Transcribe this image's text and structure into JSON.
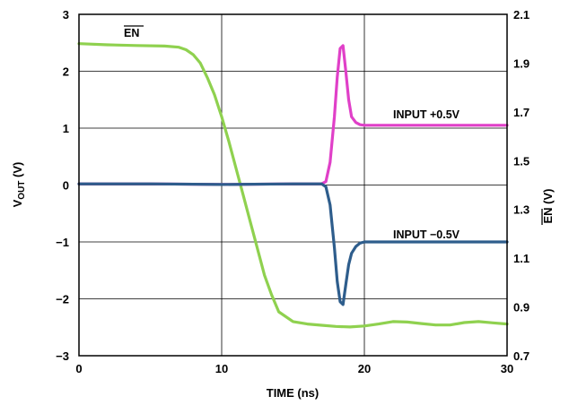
{
  "chart_data": {
    "type": "line",
    "xlabel": "TIME (ns)",
    "ylabel_left_main": "V",
    "ylabel_left_sub": "OUT",
    "ylabel_left_unit": " (V)",
    "ylabel_right_main": "EN",
    "ylabel_right_unit": " (V)",
    "xlim": [
      0,
      30
    ],
    "ylim_left": [
      -3,
      3
    ],
    "ylim_right": [
      0.7,
      2.1
    ],
    "grid": true,
    "x_ticks": [
      "0",
      "10",
      "20",
      "30"
    ],
    "y_left_ticks": [
      "3",
      "2",
      "1",
      "0",
      "−1",
      "−2",
      "−3"
    ],
    "y_right_ticks": [
      "2.1",
      "1.9",
      "1.7",
      "1.5",
      "1.3",
      "1.1",
      "0.9",
      "0.7"
    ],
    "annotations": {
      "en": "EN",
      "input_pos": "INPUT +0.5V",
      "input_neg": "INPUT −0.5V"
    },
    "series": [
      {
        "axis": "right",
        "color": "#8fd14f",
        "x": [
          0,
          2,
          4,
          6,
          7,
          7.5,
          8,
          8.5,
          9,
          9.5,
          10,
          10.5,
          11,
          11.5,
          12,
          12.5,
          13,
          13.5,
          14,
          15,
          16,
          17,
          18,
          19,
          20,
          21,
          22,
          23,
          24,
          25,
          26,
          27,
          28,
          29,
          30
        ],
        "y": [
          1.98,
          1.975,
          1.972,
          1.97,
          1.965,
          1.955,
          1.935,
          1.9,
          1.84,
          1.77,
          1.68,
          1.58,
          1.47,
          1.36,
          1.25,
          1.14,
          1.03,
          0.95,
          0.88,
          0.84,
          0.83,
          0.825,
          0.82,
          0.818,
          0.822,
          0.83,
          0.84,
          0.838,
          0.832,
          0.826,
          0.826,
          0.836,
          0.84,
          0.835,
          0.83
        ]
      },
      {
        "axis": "left",
        "color": "#e040c8",
        "x": [
          0,
          5,
          10,
          15,
          17,
          17.3,
          17.6,
          17.9,
          18.1,
          18.3,
          18.5,
          18.7,
          18.9,
          19.1,
          19.4,
          19.7,
          20,
          22,
          25,
          30
        ],
        "y": [
          0.02,
          0.02,
          0.01,
          0.02,
          0.02,
          0.06,
          0.4,
          1.2,
          1.9,
          2.4,
          2.45,
          2.0,
          1.5,
          1.2,
          1.1,
          1.06,
          1.05,
          1.05,
          1.05,
          1.05
        ]
      },
      {
        "axis": "left",
        "color": "#2e5d8c",
        "x": [
          0,
          5,
          10,
          15,
          17,
          17.3,
          17.6,
          17.9,
          18.1,
          18.3,
          18.5,
          18.7,
          18.9,
          19.1,
          19.4,
          19.7,
          20,
          22,
          25,
          30
        ],
        "y": [
          0.02,
          0.02,
          0.01,
          0.02,
          0.02,
          -0.03,
          -0.35,
          -1.1,
          -1.7,
          -2.05,
          -2.1,
          -1.75,
          -1.4,
          -1.2,
          -1.08,
          -1.02,
          -1.0,
          -1.0,
          -1.0,
          -1.0
        ]
      }
    ]
  }
}
